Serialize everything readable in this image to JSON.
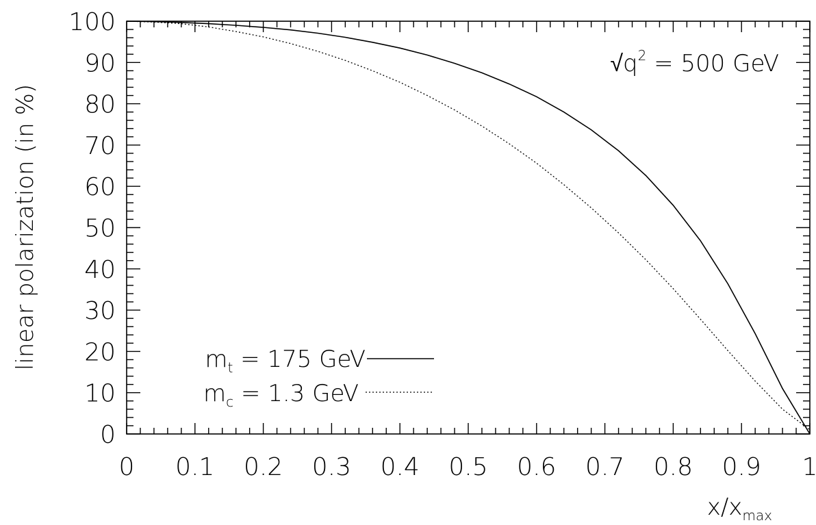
{
  "chart_data": {
    "type": "line",
    "title": "",
    "xlabel": "x/x",
    "xlabel_sub": "max",
    "ylabel": "linear polarization (in %)",
    "xlim": [
      0,
      1
    ],
    "ylim": [
      0,
      100
    ],
    "x_ticks": [
      "0",
      "0.1",
      "0.2",
      "0.3",
      "0.4",
      "0.5",
      "0.6",
      "0.7",
      "0.8",
      "0.9",
      "1"
    ],
    "y_ticks": [
      "0",
      "10",
      "20",
      "30",
      "40",
      "50",
      "60",
      "70",
      "80",
      "90",
      "100"
    ],
    "grid": false,
    "legend_position": "bottom-left",
    "annotation": {
      "prefix": "√q",
      "sup": "2",
      "suffix": " = 500 GeV"
    },
    "series": [
      {
        "name": "m_t = 175 GeV",
        "legend_base": "m",
        "legend_sub": "t",
        "legend_rest": " = 175 GeV",
        "line_style": "solid",
        "color": "#000000",
        "x": [
          0,
          0.04,
          0.08,
          0.12,
          0.16,
          0.2,
          0.24,
          0.28,
          0.32,
          0.36,
          0.4,
          0.44,
          0.48,
          0.52,
          0.56,
          0.6,
          0.64,
          0.68,
          0.72,
          0.76,
          0.8,
          0.84,
          0.88,
          0.92,
          0.96,
          1.0
        ],
        "y": [
          100,
          99.9,
          99.7,
          99.4,
          99.0,
          98.5,
          97.9,
          97.1,
          96.1,
          94.9,
          93.5,
          91.8,
          89.8,
          87.5,
          84.8,
          81.7,
          78.0,
          73.7,
          68.6,
          62.6,
          55.4,
          46.8,
          36.4,
          24.3,
          11.0,
          0
        ]
      },
      {
        "name": "m_c = 1.3 GeV",
        "legend_base": "m",
        "legend_sub": "c",
        "legend_rest": " = 1.3 GeV",
        "line_style": "dotted",
        "color": "#000000",
        "x": [
          0,
          0.04,
          0.08,
          0.12,
          0.16,
          0.2,
          0.24,
          0.28,
          0.32,
          0.36,
          0.4,
          0.44,
          0.48,
          0.52,
          0.56,
          0.6,
          0.64,
          0.68,
          0.72,
          0.76,
          0.8,
          0.84,
          0.88,
          0.92,
          0.96,
          1.0
        ],
        "y": [
          100,
          99.8,
          99.4,
          98.6,
          97.5,
          96.2,
          94.6,
          92.7,
          90.5,
          88.0,
          85.2,
          82.0,
          78.5,
          74.6,
          70.3,
          65.6,
          60.4,
          54.8,
          48.7,
          42.2,
          35.2,
          27.8,
          20.2,
          12.8,
          6.0,
          1.0
        ]
      }
    ]
  }
}
